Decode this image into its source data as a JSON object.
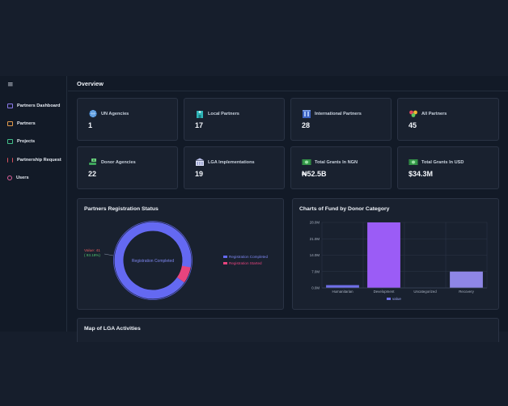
{
  "sidebar": {
    "menu_glyph": "≡",
    "items": [
      {
        "label": "Partners Dashboard",
        "icon": "dashboard-icon"
      },
      {
        "label": "Partners",
        "icon": "partners-icon"
      },
      {
        "label": "Projects",
        "icon": "projects-icon"
      },
      {
        "label": "Partnership Request",
        "icon": "request-icon"
      },
      {
        "label": "Users",
        "icon": "users-icon"
      }
    ]
  },
  "header": {
    "title": "Overview"
  },
  "stats": [
    {
      "label": "UN Agencies",
      "value": "1",
      "icon": "globe-icon"
    },
    {
      "label": "Local Partners",
      "value": "17",
      "icon": "hospital-icon"
    },
    {
      "label": "International Partners",
      "value": "28",
      "icon": "building-icon"
    },
    {
      "label": "All Partners",
      "value": "45",
      "icon": "partners-star-icon"
    },
    {
      "label": "Donor Agencies",
      "value": "22",
      "icon": "donor-hand-icon"
    },
    {
      "label": "LGA Implementations",
      "value": "19",
      "icon": "government-building-icon"
    },
    {
      "label": "Total Grants In NGN",
      "value": "₦52.5B",
      "icon": "money-icon"
    },
    {
      "label": "Total Grants In USD",
      "value": "$34.3M",
      "icon": "dollar-icon"
    }
  ],
  "registration": {
    "title": "Partners Registration Status",
    "center_label": "Registration Completed",
    "callout_value": "Value: 41",
    "callout_pct": "( 93.18%)",
    "legend": [
      {
        "label": "Registration Completed",
        "color": "#6469f2"
      },
      {
        "label": "Registration Started",
        "color": "#e8447e"
      }
    ],
    "colors": {
      "track": "#1c2334",
      "completed": "#6469f2",
      "started": "#e8447e"
    }
  },
  "fund_chart": {
    "title": "Charts of Fund by Donor Category",
    "legend_label": "value"
  },
  "chart_data": {
    "type": "bar",
    "categories": [
      "Humanitarian",
      "Development",
      "Uncategorized",
      "Recovery"
    ],
    "series": [
      {
        "name": "value",
        "values": [
          1.2,
          28.0,
          0,
          7.0
        ]
      }
    ],
    "colors": [
      "#6f6fe8",
      "#9b5cf6",
      "#7a7ae0",
      "#8e86e6"
    ],
    "y_ticks": [
      "0.0M",
      "7.0M",
      "14.0M",
      "21.0M",
      "28.0M"
    ],
    "ylim": [
      0,
      28
    ],
    "grid": true,
    "legend_position": "bottom"
  },
  "map": {
    "title": "Map of LGA Activities"
  }
}
